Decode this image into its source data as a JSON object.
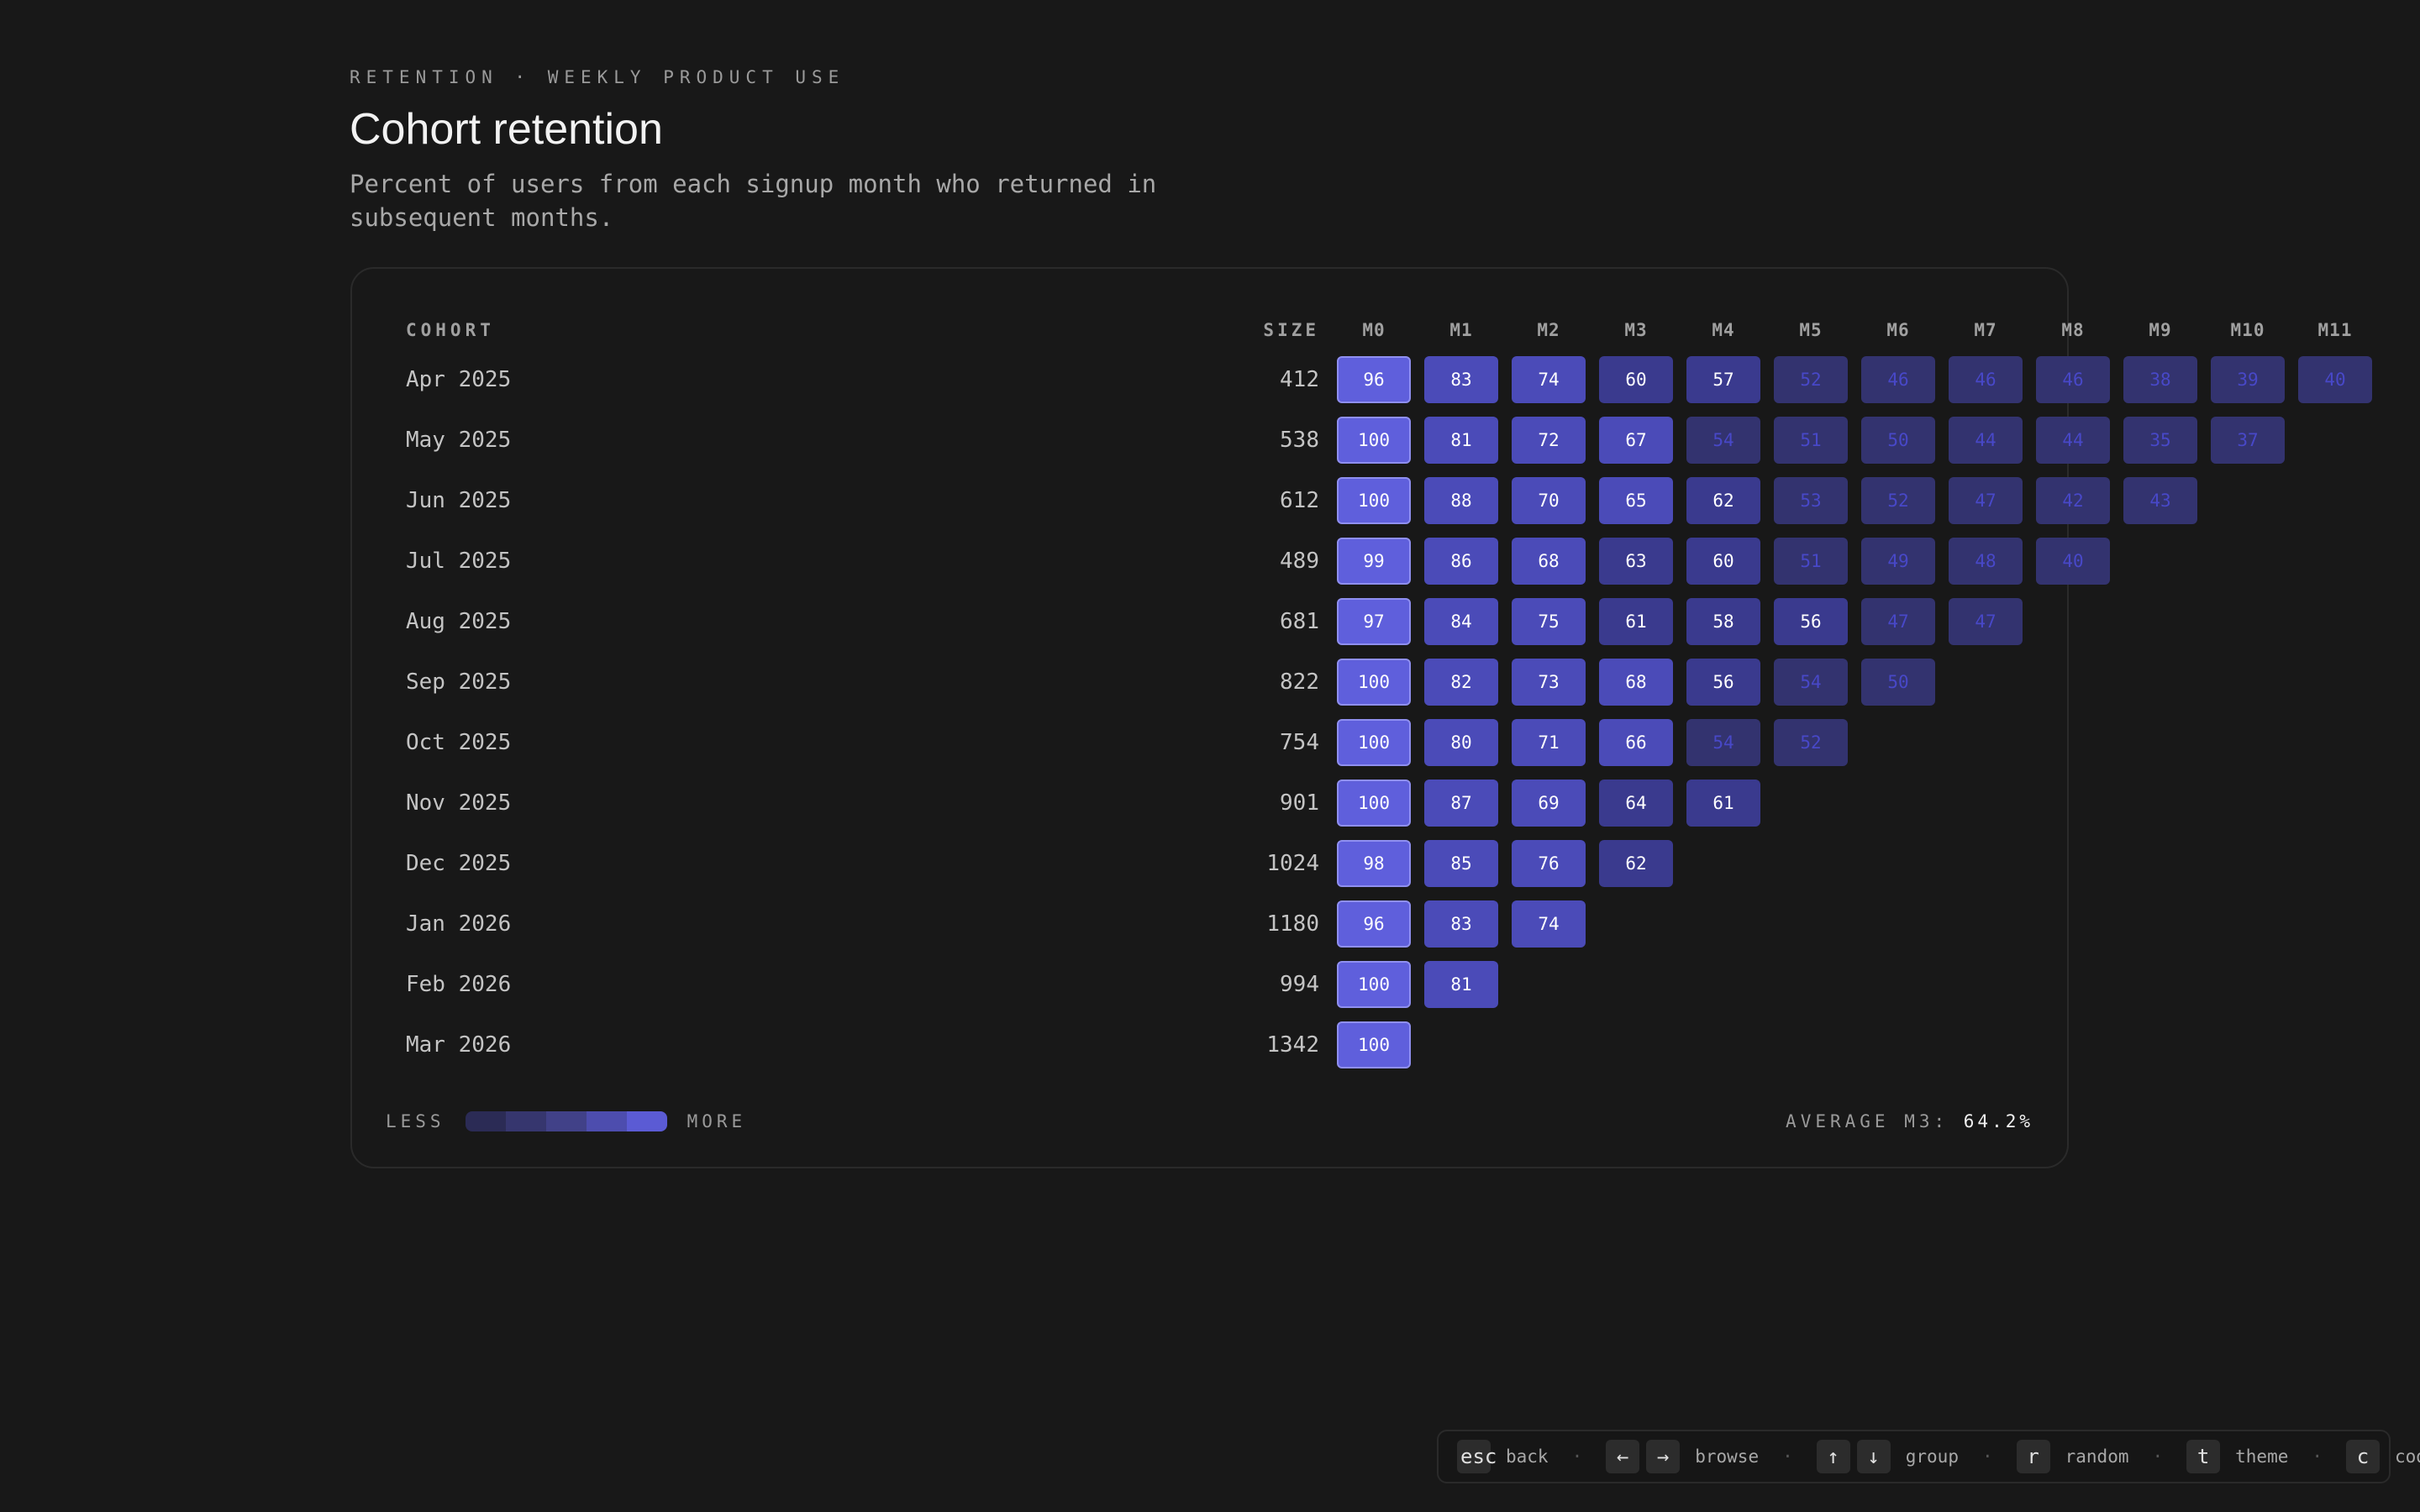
{
  "header": {
    "eyebrow": "RETENTION · WEEKLY PRODUCT USE",
    "title": "Cohort retention",
    "subtitle": "Percent of users from each signup month who returned in subsequent months."
  },
  "chart_data": {
    "type": "heatmap",
    "title": "Cohort retention",
    "column_headers": {
      "cohort": "COHORT",
      "size": "SIZE"
    },
    "months": [
      "M0",
      "M1",
      "M2",
      "M3",
      "M4",
      "M5",
      "M6",
      "M7",
      "M8",
      "M9",
      "M10",
      "M11"
    ],
    "cohorts": [
      {
        "label": "Apr 2025",
        "size": "412",
        "values": [
          96,
          83,
          74,
          60,
          57,
          52,
          46,
          46,
          46,
          38,
          39,
          40
        ]
      },
      {
        "label": "May 2025",
        "size": "538",
        "values": [
          100,
          81,
          72,
          67,
          54,
          51,
          50,
          44,
          44,
          35,
          37
        ]
      },
      {
        "label": "Jun 2025",
        "size": "612",
        "values": [
          100,
          88,
          70,
          65,
          62,
          53,
          52,
          47,
          42,
          43
        ]
      },
      {
        "label": "Jul 2025",
        "size": "489",
        "values": [
          99,
          86,
          68,
          63,
          60,
          51,
          49,
          48,
          40
        ]
      },
      {
        "label": "Aug 2025",
        "size": "681",
        "values": [
          97,
          84,
          75,
          61,
          58,
          56,
          47,
          47
        ]
      },
      {
        "label": "Sep 2025",
        "size": "822",
        "values": [
          100,
          82,
          73,
          68,
          56,
          54,
          50
        ]
      },
      {
        "label": "Oct 2025",
        "size": "754",
        "values": [
          100,
          80,
          71,
          66,
          54,
          52
        ]
      },
      {
        "label": "Nov 2025",
        "size": "901",
        "values": [
          100,
          87,
          69,
          64,
          61
        ]
      },
      {
        "label": "Dec 2025",
        "size": "1024",
        "values": [
          98,
          85,
          76,
          62
        ]
      },
      {
        "label": "Jan 2026",
        "size": "1180",
        "values": [
          96,
          83,
          74
        ]
      },
      {
        "label": "Feb 2026",
        "size": "994",
        "values": [
          100,
          81
        ]
      },
      {
        "label": "Mar 2026",
        "size": "1342",
        "values": [
          100
        ]
      }
    ],
    "colors": {
      "high": "#5f5fdc",
      "mid": "#4b4bb8",
      "low": "#3a3a8e",
      "lowest": "#33336f",
      "dim_text": "#4848c8",
      "bright_text": "#ffffff"
    }
  },
  "legend": {
    "less": "LESS",
    "more": "MORE",
    "scale_colors": [
      "#2b2b55",
      "#36366e",
      "#414188",
      "#4d4dae",
      "#5b5bd4"
    ]
  },
  "summary": {
    "label": "AVERAGE M3:",
    "value": "64.2%"
  },
  "shortcuts": [
    {
      "keys": [
        "esc"
      ],
      "label": "back"
    },
    {
      "keys": [
        "←",
        "→"
      ],
      "label": "browse"
    },
    {
      "keys": [
        "↑",
        "↓"
      ],
      "label": "group"
    },
    {
      "keys": [
        "r"
      ],
      "label": "random"
    },
    {
      "keys": [
        "t"
      ],
      "label": "theme"
    },
    {
      "keys": [
        "c"
      ],
      "label": "code"
    }
  ]
}
